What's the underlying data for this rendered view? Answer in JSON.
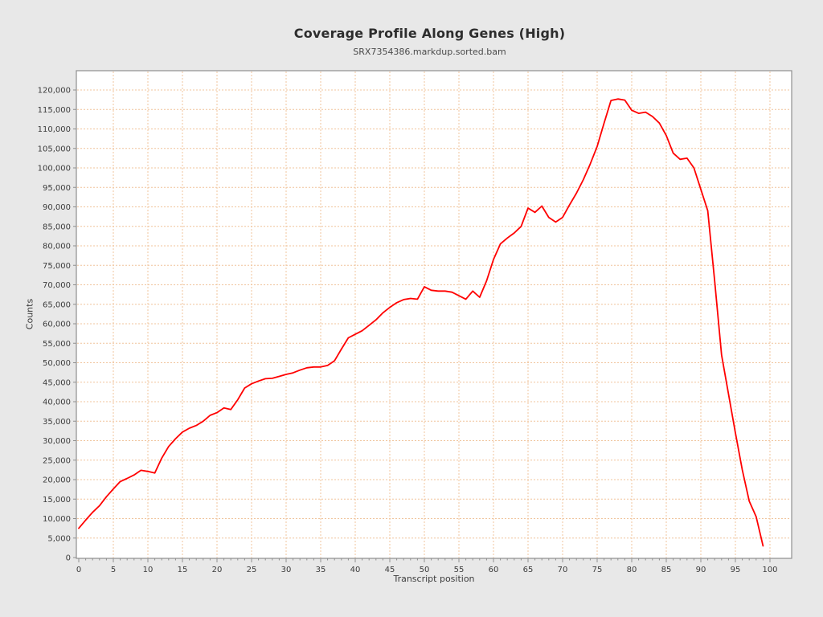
{
  "chart_data": {
    "type": "line",
    "title": "Coverage Profile Along Genes (High)",
    "subtitle": "SRX7354386.markdup.sorted.bam",
    "xlabel": "Transcript position",
    "ylabel": "Counts",
    "x_range": [
      0,
      99
    ],
    "x_step": 1,
    "xlim": [
      0,
      100
    ],
    "ylim": [
      0,
      120000
    ],
    "x_tick_interval": 5,
    "y_tick_interval": 5000,
    "grid": true,
    "legend": "none",
    "series": [
      {
        "name": "coverage",
        "color": "#ff0000",
        "values": [
          7500,
          9600,
          11600,
          13300,
          15600,
          17600,
          19500,
          20300,
          21200,
          22400,
          22100,
          21700,
          25500,
          28500,
          30500,
          32200,
          33200,
          33900,
          35000,
          36500,
          37200,
          38400,
          38000,
          40500,
          43500,
          44600,
          45300,
          45900,
          46000,
          46500,
          47000,
          47400,
          48100,
          48700,
          48900,
          48900,
          49300,
          50500,
          53500,
          56400,
          57300,
          58200,
          59600,
          61000,
          62800,
          64200,
          65400,
          66200,
          66500,
          66300,
          69500,
          68600,
          68400,
          68400,
          68100,
          67200,
          66300,
          68400,
          66800,
          71000,
          76500,
          80500,
          82000,
          83300,
          85000,
          89700,
          88600,
          90200,
          87300,
          86100,
          87300,
          90500,
          93500,
          97000,
          101000,
          105500,
          111500,
          117300,
          117700,
          117400,
          114800,
          114000,
          114300,
          113200,
          111500,
          108300,
          103800,
          102200,
          102500,
          100000,
          94500,
          89000,
          71000,
          52000,
          42000,
          32000,
          22500,
          14500,
          10500,
          3000
        ]
      }
    ]
  },
  "colors": {
    "background": "#e8e8e8",
    "plot_background": "#ffffff",
    "grid": "#f0c49c",
    "frame": "#8f8f8f",
    "tick_text": "#3c3c3c",
    "title_text": "#2d2d2d",
    "line": "#ff0000"
  }
}
